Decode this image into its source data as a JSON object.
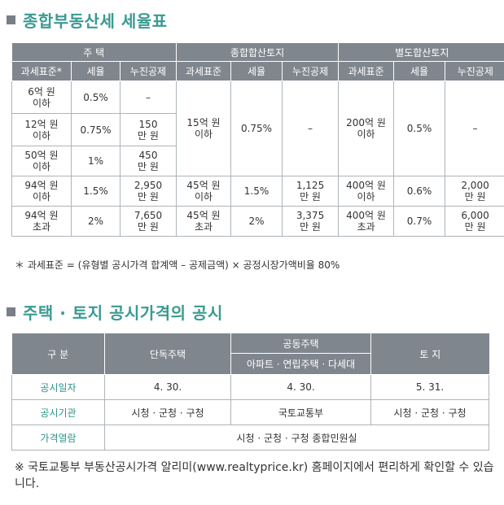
{
  "section1": {
    "title": "종합부동산세 세율표"
  },
  "tax_table": {
    "group_headers": [
      "주  택",
      "종합합산토지",
      "별도합산토지"
    ],
    "sub_headers": [
      "과세표준*",
      "세율",
      "누진공제",
      "과세표준",
      "세율",
      "누진공제",
      "과세표준",
      "세율",
      "누진공제"
    ],
    "housing_rows": [
      {
        "base": "6억 원\n이하",
        "rate": "0.5%",
        "deduct": "–"
      },
      {
        "base": "12억 원\n이하",
        "rate": "0.75%",
        "deduct": "150\n만 원"
      },
      {
        "base": "50억 원\n이하",
        "rate": "1%",
        "deduct": "450\n만 원"
      },
      {
        "base": "94억 원\n이하",
        "rate": "1.5%",
        "deduct": "2,950\n만 원"
      },
      {
        "base": "94억 원\n초과",
        "rate": "2%",
        "deduct": "7,650\n만 원"
      }
    ],
    "combined_land": [
      {
        "base": "15억 원\n이하",
        "rate": "0.75%",
        "deduct": "–"
      },
      {
        "base": "45억 원\n이하",
        "rate": "1.5%",
        "deduct": "1,125\n만 원"
      },
      {
        "base": "45억 원\n초과",
        "rate": "2%",
        "deduct": "3,375\n만 원"
      }
    ],
    "separate_land": [
      {
        "base": "200억 원\n이하",
        "rate": "0.5%",
        "deduct": "–"
      },
      {
        "base": "400억 원\n이하",
        "rate": "0.6%",
        "deduct": "2,000\n만 원"
      },
      {
        "base": "400억 원\n초과",
        "rate": "0.7%",
        "deduct": "6,000\n만 원"
      }
    ],
    "footnote": "＊ 과세표준 = (유형별 공시가격 합계액 – 공제금액) × 공정시장가액비율 80%"
  },
  "section2": {
    "title": "주택 · 토지 공시가격의 공시"
  },
  "pub_table": {
    "head_gubun": "구  분",
    "head_single": "단독주택",
    "head_apt_group": "공동주택",
    "head_apt_sub": "아파트 · 연립주택 · 다세대",
    "head_land": "토  지",
    "rows": [
      {
        "label": "공시일자",
        "single": "4. 30.",
        "apt": "4. 30.",
        "land": "5. 31."
      },
      {
        "label": "공시기관",
        "single": "시청 · 군청 · 구청",
        "apt": "국토교통부",
        "land": "시청 · 군청 · 구청"
      }
    ],
    "view_label": "가격열람",
    "view_value": "시청 · 군청 · 구청 종합민원실"
  },
  "note2": "※ 국토교통부 부동산공시가격 알리미(www.realtyprice.kr) 홈페이지에서 편리하게 확인할 수 있습니다."
}
